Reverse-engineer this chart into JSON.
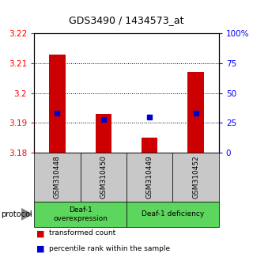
{
  "title": "GDS3490 / 1434573_at",
  "samples": [
    "GSM310448",
    "GSM310450",
    "GSM310449",
    "GSM310452"
  ],
  "red_values": [
    3.213,
    3.193,
    3.185,
    3.207
  ],
  "blue_percentiles": [
    33,
    28,
    30,
    33
  ],
  "ylim_left": [
    3.18,
    3.22
  ],
  "yticks_left": [
    3.18,
    3.19,
    3.2,
    3.21,
    3.22
  ],
  "ytick_labels_left": [
    "3.18",
    "3.19",
    "3.2",
    "3.21",
    "3.22"
  ],
  "yticks_right": [
    0,
    25,
    50,
    75,
    100
  ],
  "ytick_labels_right": [
    "0",
    "25",
    "50",
    "75",
    "100%"
  ],
  "grid_lines": [
    3.19,
    3.2,
    3.21
  ],
  "red_color": "#cc0000",
  "blue_color": "#0000cc",
  "bar_width": 0.35,
  "legend_red": "transformed count",
  "legend_blue": "percentile rank within the sample",
  "sample_box_color": "#c8c8c8",
  "group1_label": "Deaf-1\noverexpression",
  "group2_label": "Deaf-1 deficiency",
  "group_color": "#5cd65c",
  "protocol_label": "protocol"
}
